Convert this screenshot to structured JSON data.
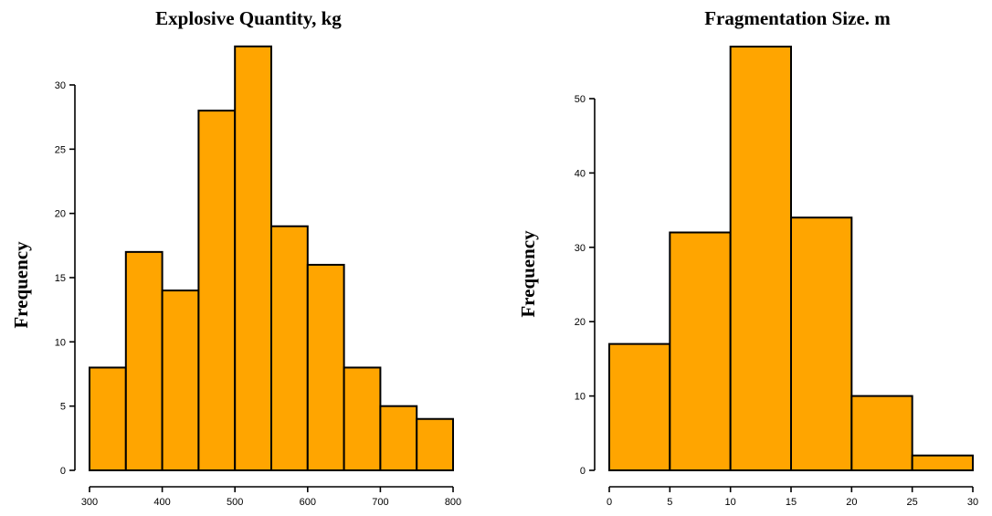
{
  "chart_data": [
    {
      "type": "bar",
      "title": "Explosive Quantity, kg",
      "xlabel": "",
      "ylabel": "Frequency",
      "bin_edges": [
        300,
        350,
        400,
        450,
        500,
        550,
        600,
        650,
        700,
        750,
        800
      ],
      "values": [
        8,
        17,
        14,
        28,
        33,
        19,
        16,
        8,
        5,
        4
      ],
      "xticks": [
        300,
        400,
        500,
        600,
        700,
        800
      ],
      "yticks": [
        0,
        5,
        10,
        15,
        20,
        25,
        30
      ],
      "xlim": [
        300,
        800
      ],
      "ylim": [
        0,
        30
      ],
      "bar_color": "#FFA500",
      "grid": false
    },
    {
      "type": "bar",
      "title": "Fragmentation Size. m",
      "xlabel": "",
      "ylabel": "Frequency",
      "bin_edges": [
        0,
        5,
        10,
        15,
        20,
        25,
        30
      ],
      "values": [
        17,
        32,
        57,
        34,
        10,
        2
      ],
      "xticks": [
        0,
        5,
        10,
        15,
        20,
        25,
        30
      ],
      "yticks": [
        0,
        10,
        20,
        30,
        40,
        50
      ],
      "xlim": [
        0,
        30
      ],
      "ylim": [
        0,
        50
      ],
      "bar_color": "#FFA500",
      "grid": false
    }
  ]
}
